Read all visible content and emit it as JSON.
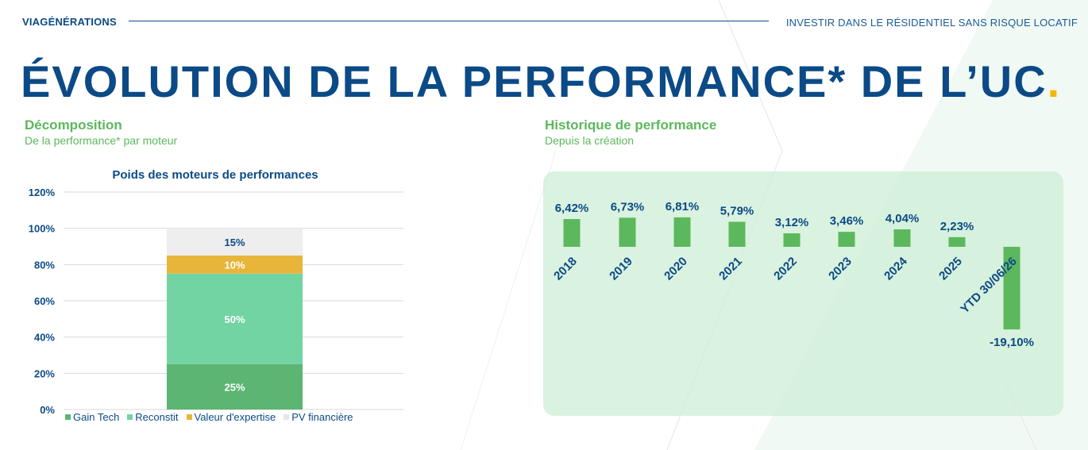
{
  "header": {
    "brand": "VIAGÉNÉRATIONS",
    "tagline": "INVESTIR DANS LE RÉSIDENTIEL SANS RISQUE LOCATIF"
  },
  "title": {
    "text": "ÉVOLUTION DE LA PERFORMANCE* DE L’UC",
    "dot": ".",
    "dot_color": "#f2b80a"
  },
  "left_section": {
    "title": "Décomposition",
    "subtitle": "De la performance* par moteur"
  },
  "right_section": {
    "title": "Historique de performance",
    "subtitle": "Depuis la création"
  },
  "colors": {
    "navy": "#0b4a86",
    "green_title": "#5cb85c",
    "gain_tech": "#5cb572",
    "reconstit": "#72d4a2",
    "valeur_expertise": "#e8b53b",
    "pv_financiere": "#eeeeee",
    "history_bar": "#5cb85c",
    "panel": "#d4f0dc"
  },
  "chart_data": [
    {
      "type": "bar",
      "stacked": true,
      "title": "Poids des moteurs de performances",
      "ylim": [
        0,
        120
      ],
      "yticks": [
        "0%",
        "20%",
        "40%",
        "60%",
        "80%",
        "100%",
        "120%"
      ],
      "grid": true,
      "legend_position": "bottom",
      "categories": [
        ""
      ],
      "series": [
        {
          "name": "Gain Tech",
          "values": [
            25
          ],
          "label": "25%",
          "color": "#5cb572"
        },
        {
          "name": "Reconstit",
          "values": [
            50
          ],
          "label": "50%",
          "color": "#72d4a2"
        },
        {
          "name": "Valeur d'expertise",
          "values": [
            10
          ],
          "label": "10%",
          "color": "#e8b53b"
        },
        {
          "name": "PV financière",
          "values": [
            15
          ],
          "label": "15%",
          "color": "#eeeeee"
        }
      ]
    },
    {
      "type": "bar",
      "title": "",
      "categories": [
        "2018",
        "2019",
        "2020",
        "2021",
        "2022",
        "2023",
        "2024",
        "2025",
        "YTD 30/06/26"
      ],
      "values": [
        6.42,
        6.73,
        6.81,
        5.79,
        3.12,
        3.46,
        4.04,
        2.23,
        -19.1
      ],
      "labels": [
        "6,42%",
        "6,73%",
        "6,81%",
        "5,79%",
        "3,12%",
        "3,46%",
        "4,04%",
        "2,23%",
        "-19,10%"
      ],
      "color": "#5cb85c"
    }
  ]
}
